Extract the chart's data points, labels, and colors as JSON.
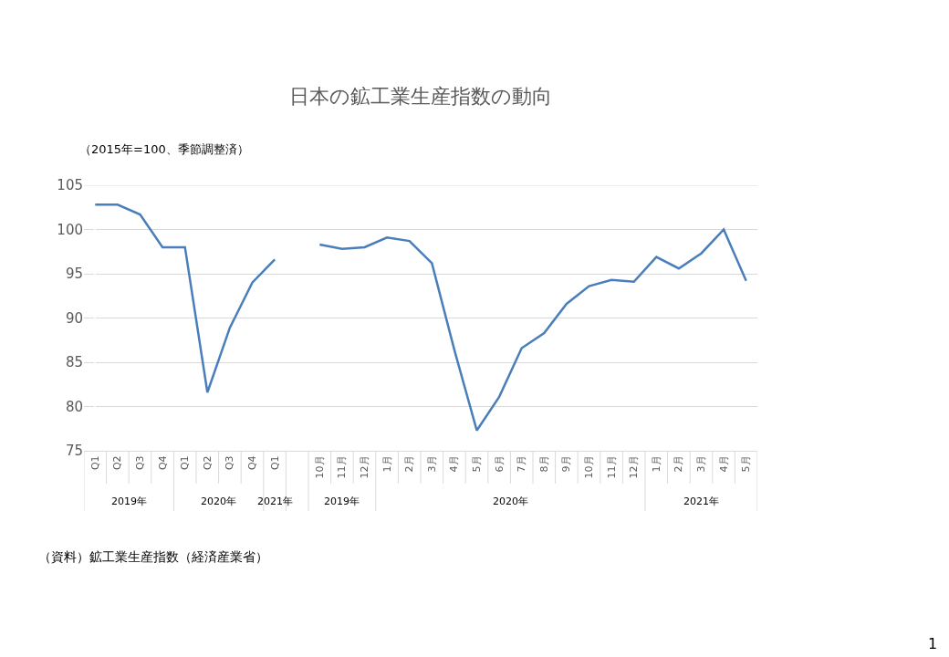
{
  "chart_data": {
    "type": "line",
    "title": "日本の鉱工業生産指数の動向",
    "subtitle": "（2015年=100、季節調整済）",
    "categories": [
      "Q1",
      "Q2",
      "Q3",
      "Q4",
      "Q1",
      "Q2",
      "Q3",
      "Q4",
      "Q1",
      null,
      "10月",
      "11月",
      "12月",
      "1月",
      "2月",
      "3月",
      "4月",
      "5月",
      "6月",
      "7月",
      "8月",
      "9月",
      "10月",
      "11月",
      "12月",
      "1月",
      "2月",
      "3月",
      "4月",
      "5月"
    ],
    "series": [
      {
        "color": "#4a7ebb",
        "values": [
          102.8,
          102.8,
          101.7,
          98.0,
          98.0,
          81.6,
          88.9,
          94.0,
          96.6,
          null,
          98.3,
          97.8,
          98.0,
          99.1,
          98.7,
          96.2,
          86.4,
          77.3,
          81.1,
          86.6,
          88.3,
          91.6,
          93.6,
          94.3,
          94.1,
          96.9,
          95.6,
          97.3,
          100.0,
          94.2
        ]
      }
    ],
    "ylim": [
      75,
      105
    ],
    "yticks": [
      75,
      80,
      85,
      90,
      95,
      100,
      105
    ],
    "grid": "y",
    "marker": "none",
    "line_style": "solid",
    "annotations": [
      "（資料）鉱工業生産指数（経済産業省）",
      "1",
      "2019年",
      "2020年",
      "2021年",
      "2019年",
      "2020年",
      "2021年"
    ]
  }
}
